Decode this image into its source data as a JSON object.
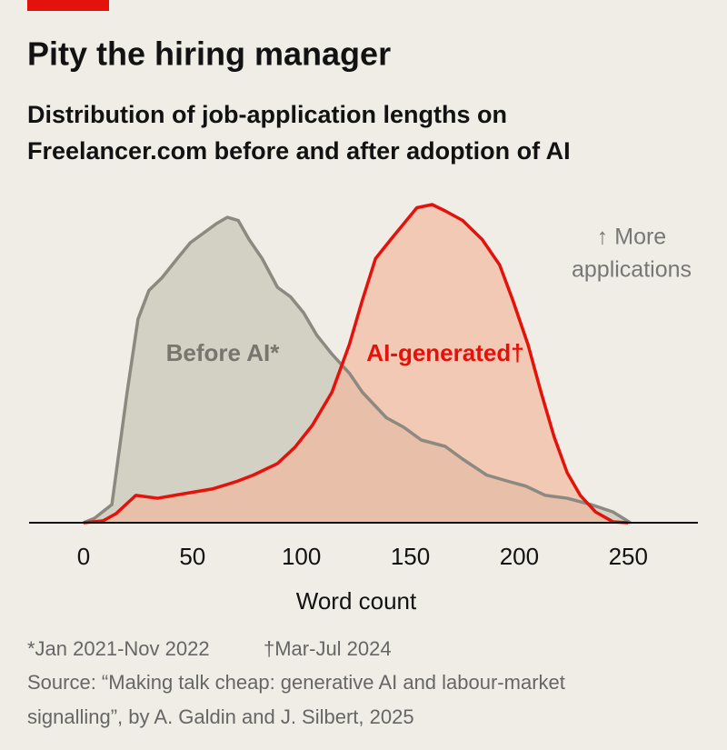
{
  "chart_data": {
    "type": "area",
    "title": "Pity the hiring manager",
    "subtitle": [
      "Distribution of job-application lengths on",
      "Freelancer.com before and after adoption of AI"
    ],
    "xlabel": "Word count",
    "annotation": [
      "↑ More",
      "applications"
    ],
    "xlim": [
      -25,
      282
    ],
    "xticks": [
      0,
      50,
      100,
      150,
      200,
      250
    ],
    "ylim": [
      0,
      100
    ],
    "series": [
      {
        "name": "Before AI*",
        "color": "#8c8a80",
        "fill": "#d3d0c4",
        "x": [
          0,
          5,
          13,
          20,
          25,
          30,
          36,
          43,
          49,
          55,
          61,
          66,
          71,
          76,
          82,
          89,
          95,
          101,
          107,
          114,
          122,
          128,
          139,
          147,
          155,
          166,
          174,
          185,
          195,
          203,
          212,
          222,
          233,
          243,
          251
        ],
        "values": [
          0,
          1.4,
          5.7,
          41,
          64,
          73,
          77,
          83,
          88,
          91,
          94,
          96,
          95,
          89,
          83,
          74,
          71,
          66,
          59,
          53,
          47,
          41,
          33,
          30,
          26,
          24,
          20,
          15,
          13,
          11.5,
          8.6,
          7.7,
          5.7,
          3.4,
          0
        ]
      },
      {
        "name": "AI-generated†",
        "color": "#e3120b",
        "fill": "#f2b59a",
        "x": [
          0,
          9,
          15,
          24,
          34,
          45,
          59,
          70,
          78,
          89,
          97,
          105,
          114,
          122,
          128,
          134,
          141,
          147,
          153,
          160,
          166,
          174,
          183,
          191,
          197,
          204,
          210,
          216,
          222,
          228,
          235,
          243,
          250
        ],
        "values": [
          0,
          0.6,
          2.9,
          8.6,
          7.7,
          9,
          10.6,
          12.9,
          15,
          18.6,
          23.7,
          30.6,
          41,
          56,
          70,
          83,
          89,
          94,
          99,
          100,
          98,
          95,
          89,
          81,
          70,
          56,
          41,
          27,
          15.7,
          8.6,
          3.4,
          0.3,
          0
        ]
      }
    ],
    "notes": [
      "*Jan 2021-Nov 2022",
      "†Mar-Jul 2024"
    ],
    "source": [
      "Source: “Making talk cheap: generative AI and labour-market",
      "signalling”, by A. Galdin and J. Silbert, 2025"
    ]
  }
}
